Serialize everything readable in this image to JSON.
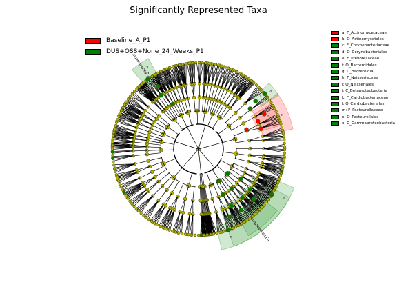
{
  "title": "Significantly Represented Taxa",
  "groups": [
    {
      "name": "Baseline_A_P1",
      "color": "#ff0000"
    },
    {
      "name": "DUS+OSS+None_24_Weeks_P1",
      "color": "#008000"
    }
  ],
  "clades": [
    {
      "label": "a: F_Actinomycetaceae",
      "group": 0
    },
    {
      "label": "b: O_Actinomycetales",
      "group": 0
    },
    {
      "label": "c: F_Corynebacteriaceae",
      "group": 1
    },
    {
      "label": "d: O_Corynebacteriales",
      "group": 1
    },
    {
      "label": "e: F_Prevotellaceae",
      "group": 1
    },
    {
      "label": "f: O_Bacteroidales",
      "group": 1
    },
    {
      "label": "g: C_Bacteroidia",
      "group": 1
    },
    {
      "label": "h: F_Neisseriaceae",
      "group": 1
    },
    {
      "label": "i: O_Neisseriales",
      "group": 1
    },
    {
      "label": "j: C_Betaproteobacteria",
      "group": 1
    },
    {
      "label": "k: F_Cardiobacteriaceae",
      "group": 1
    },
    {
      "label": "l: O_Cardiobacteriales",
      "group": 1
    },
    {
      "label": "m: F_Pasteurellaceae",
      "group": 1
    },
    {
      "label": "n: O_Pasteurellales",
      "group": 1
    },
    {
      "label": "o: C_Gammaproteobacteria",
      "group": 1
    }
  ],
  "sector_labels": {
    "bacteroidia": "P_Bacteroidetes",
    "proteobacteria": "P_Proteobacteria"
  },
  "colors": {
    "node": "#b5b50a",
    "node_stroke": "#555500",
    "red": "#ff0000",
    "green": "#008000"
  }
}
